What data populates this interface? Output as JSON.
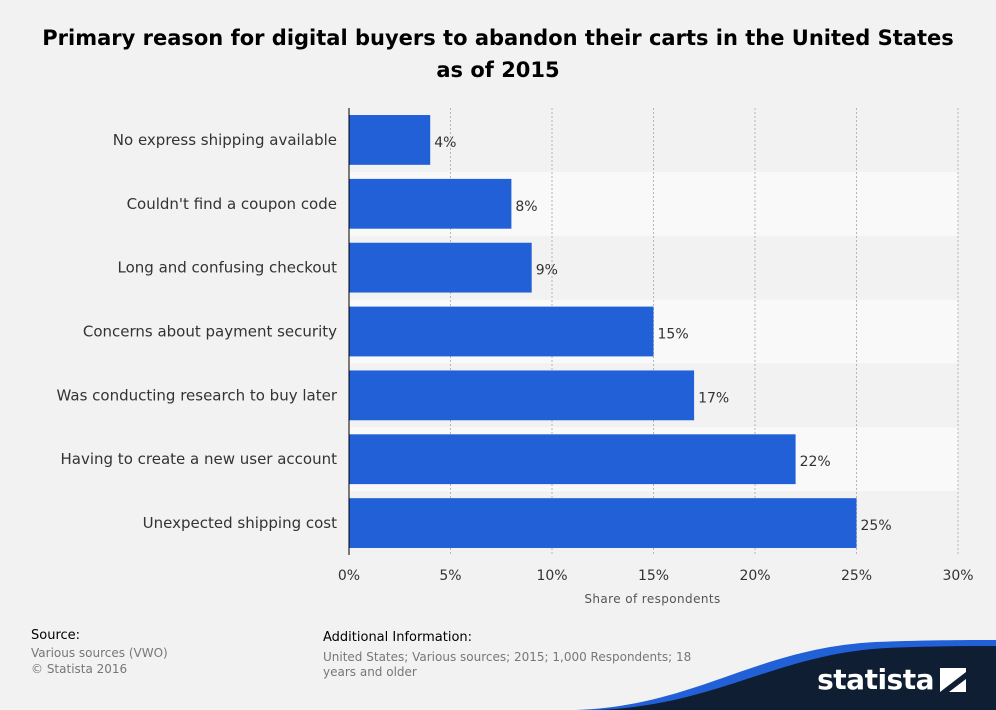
{
  "title": "Primary reason for digital buyers to abandon their carts in the United States as of 2015",
  "chart_data": {
    "type": "bar",
    "orientation": "horizontal",
    "categories": [
      "No express shipping available",
      "Couldn't find a coupon code",
      "Long and confusing checkout",
      "Concerns about payment security",
      "Was conducting research to buy later",
      "Having to create a new user account",
      "Unexpected shipping cost"
    ],
    "values": [
      4,
      8,
      9,
      15,
      17,
      22,
      25
    ],
    "value_labels": [
      "4%",
      "8%",
      "9%",
      "15%",
      "17%",
      "22%",
      "25%"
    ],
    "xlabel": "Share of respondents",
    "ylabel": "",
    "xlim": [
      0,
      30
    ],
    "xticks": [
      0,
      5,
      10,
      15,
      20,
      25,
      30
    ],
    "xtick_labels": [
      "0%",
      "5%",
      "10%",
      "15%",
      "20%",
      "25%",
      "30%"
    ],
    "grid": "vertical dotted",
    "bar_color": "#2160d6"
  },
  "footer": {
    "source_heading": "Source:",
    "source_line1": "Various sources (VWO)",
    "source_line2": "© Statista 2016",
    "info_heading": "Additional Information:",
    "info_line1": "United States; Various sources; 2015; 1,000 Respondents; 18",
    "info_line2": "years and older"
  },
  "brand": {
    "name": "statista",
    "wave_color_dark": "#0f1e33",
    "wave_color_accent": "#2160d6"
  }
}
